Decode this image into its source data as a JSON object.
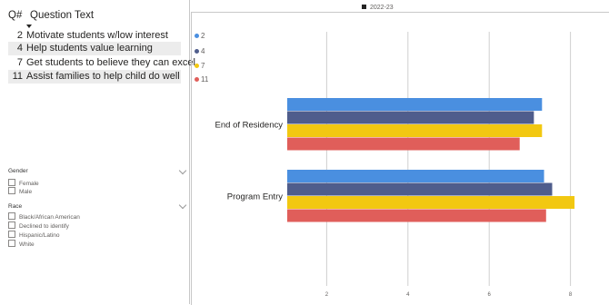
{
  "table": {
    "header_num": "Q#",
    "header_text": "Question Text",
    "rows": [
      {
        "num": "2",
        "text": "Motivate students w/low interest"
      },
      {
        "num": "4",
        "text": "Help students value learning"
      },
      {
        "num": "7",
        "text": "Get students to believe they can excel"
      },
      {
        "num": "11",
        "text": "Assist families to help child do well"
      }
    ]
  },
  "slicers": {
    "gender": {
      "title": "Gender",
      "options": [
        "Female",
        "Male"
      ]
    },
    "race": {
      "title": "Race",
      "options": [
        "Black/African American",
        "Declined to identify",
        "Hispanic/Latino",
        "White"
      ]
    }
  },
  "year_legend": "2022-23",
  "colors": {
    "q2": "#4a8fe0",
    "q4": "#4f5d8c",
    "q7": "#f2c811",
    "q11": "#e05e5a"
  },
  "chart_data": {
    "type": "bar",
    "orientation": "horizontal",
    "categories": [
      "End of Residency",
      "Program Entry"
    ],
    "series": [
      {
        "name": "2",
        "values": [
          7.3,
          7.35
        ]
      },
      {
        "name": "4",
        "values": [
          7.1,
          7.55
        ]
      },
      {
        "name": "7",
        "values": [
          7.3,
          8.1
        ]
      },
      {
        "name": "11",
        "values": [
          6.75,
          7.4
        ]
      }
    ],
    "xticks": [
      "2",
      "4",
      "6",
      "8"
    ],
    "xlim": [
      0,
      8.7
    ],
    "legend_position": "top-left",
    "grid": true
  }
}
